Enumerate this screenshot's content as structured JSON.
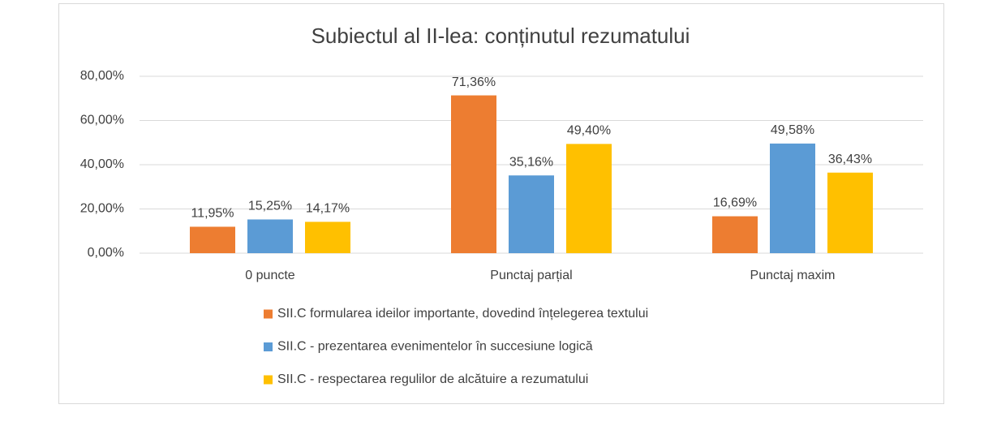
{
  "chart_data": {
    "type": "bar",
    "title": "Subiectul al II-lea: conținutul rezumatului",
    "categories": [
      "0 puncte",
      "Punctaj parțial",
      "Punctaj maxim"
    ],
    "series": [
      {
        "name": "SII.C formularea ideilor importante, dovedind înțelegerea textului",
        "color": "#ed7d31",
        "values": [
          11.95,
          71.36,
          16.69
        ],
        "value_labels": [
          "11,95%",
          "71,36%",
          "16,69%"
        ]
      },
      {
        "name": "SII.C - prezentarea evenimentelor în succesiune logică",
        "color": "#5b9bd5",
        "values": [
          15.25,
          35.16,
          49.58
        ],
        "value_labels": [
          "15,25%",
          "35,16%",
          "49,58%"
        ]
      },
      {
        "name": "SII.C - respectarea regulilor de alcătuire a rezumatului",
        "color": "#ffc000",
        "values": [
          14.17,
          49.4,
          36.43
        ],
        "value_labels": [
          "14,17%",
          "49,40%",
          "36,43%"
        ]
      }
    ],
    "ylim": [
      0,
      80
    ],
    "yticks": [
      {
        "value": 0,
        "label": "0,00%"
      },
      {
        "value": 20,
        "label": "20,00%"
      },
      {
        "value": 40,
        "label": "40,00%"
      },
      {
        "value": 60,
        "label": "60,00%"
      },
      {
        "value": 80,
        "label": "80,00%"
      }
    ],
    "grid": true,
    "legend": "bottom"
  }
}
